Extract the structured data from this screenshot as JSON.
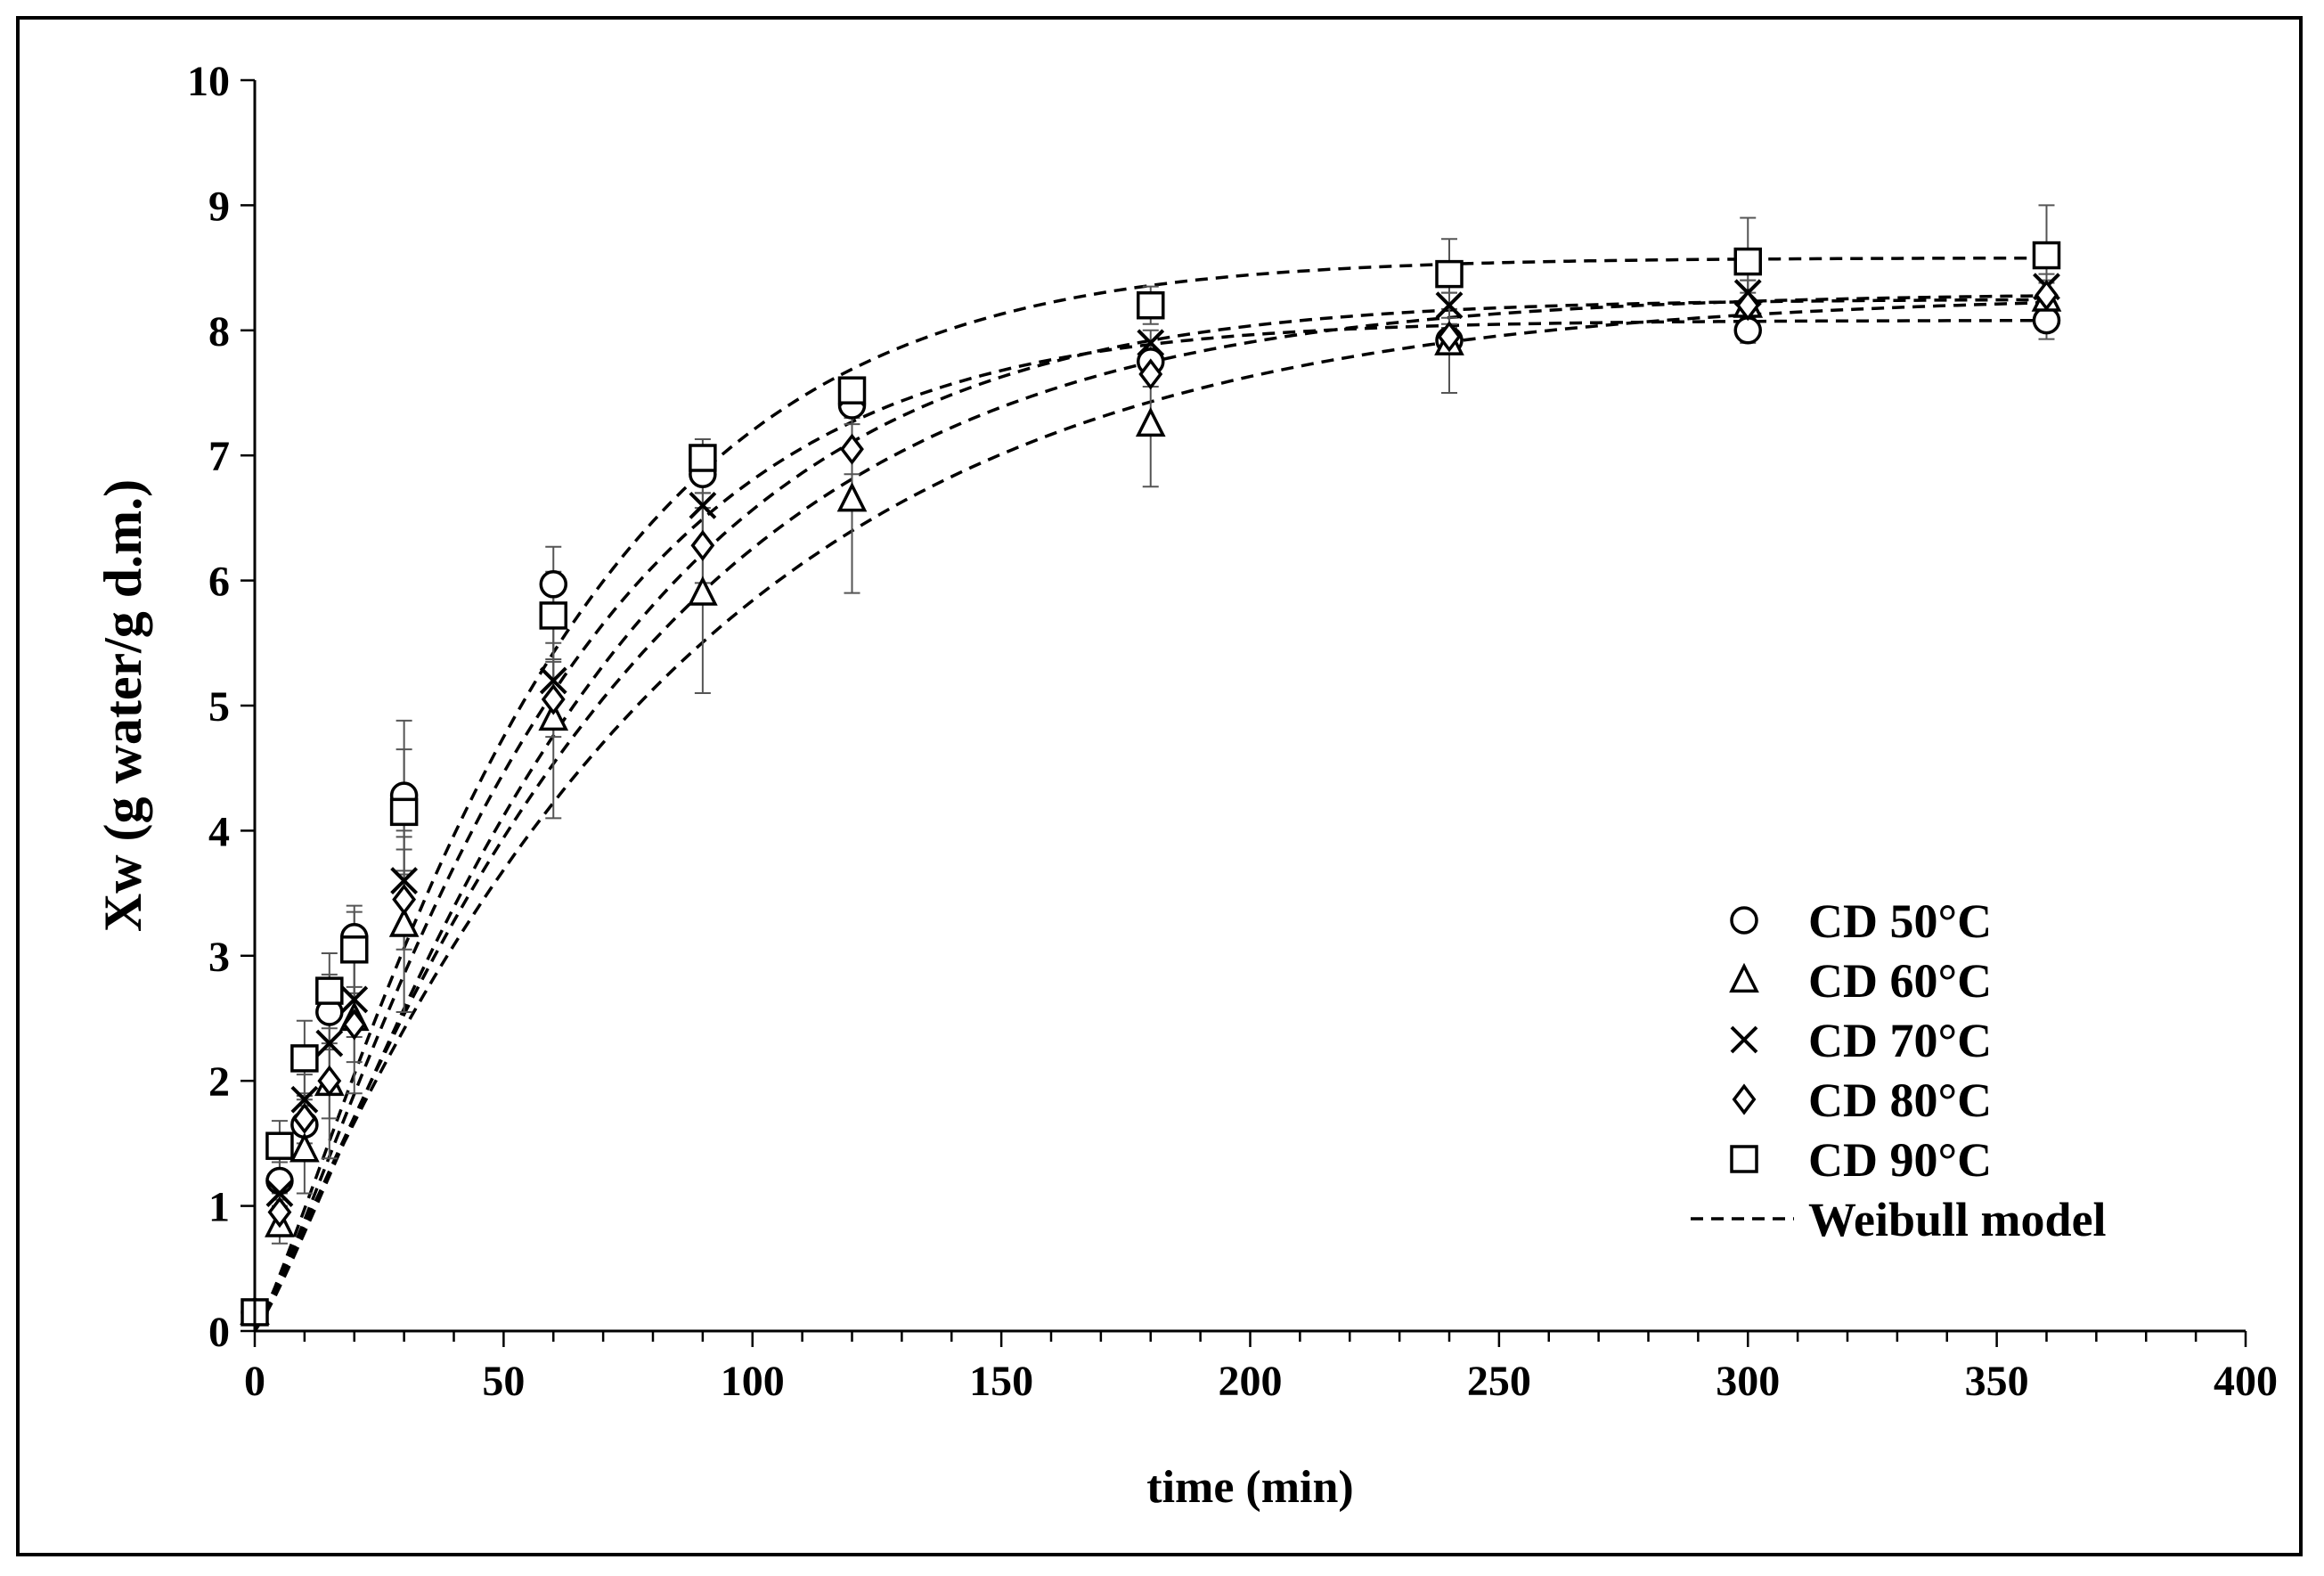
{
  "chart_data": {
    "type": "scatter",
    "xlabel": "time (min)",
    "ylabel": "Xw (g water/g d.m.)",
    "xlim": [
      0,
      400
    ],
    "ylim": [
      0,
      10
    ],
    "xticks": [
      0,
      50,
      100,
      150,
      200,
      250,
      300,
      350,
      400
    ],
    "yticks": [
      0,
      1,
      2,
      3,
      4,
      5,
      6,
      7,
      8,
      9,
      10
    ],
    "grid": false,
    "legend_position": "bottom-right",
    "x": [
      0,
      5,
      10,
      15,
      20,
      30,
      60,
      90,
      120,
      180,
      240,
      300,
      360
    ],
    "series": [
      {
        "name": "CD 50°C",
        "marker": "circle",
        "values": [
          0.15,
          1.2,
          1.65,
          2.55,
          3.15,
          4.28,
          5.97,
          6.85,
          7.4,
          7.75,
          7.92,
          8.0,
          8.08
        ],
        "errors": [
          0.05,
          0.15,
          0.2,
          0.3,
          0.2,
          0.6,
          0.3,
          0.15,
          0.1,
          0.1,
          0.1,
          0.1,
          0.15
        ],
        "model": {
          "a": 8.08,
          "b": 60.0,
          "n": 1.2
        }
      },
      {
        "name": "CD 60°C",
        "marker": "triangle",
        "values": [
          0.15,
          0.85,
          1.45,
          1.98,
          2.5,
          3.25,
          4.9,
          5.9,
          6.65,
          7.25,
          7.9,
          8.2,
          8.25
        ],
        "errors": [
          0.05,
          0.15,
          0.35,
          0.6,
          0.6,
          0.7,
          0.8,
          0.8,
          0.75,
          0.5,
          0.4,
          0.2,
          0.15
        ],
        "model": {
          "a": 8.3,
          "b": 83.0,
          "n": 1.05
        }
      },
      {
        "name": "CD 70°C",
        "marker": "x",
        "values": [
          0.15,
          1.1,
          1.85,
          2.3,
          2.65,
          3.6,
          5.2,
          6.6,
          7.5,
          7.9,
          8.2,
          8.3,
          8.35
        ],
        "errors": [
          0.05,
          0.15,
          0.2,
          0.3,
          0.3,
          0.4,
          0.3,
          0.3,
          0.1,
          0.1,
          0.1,
          0.1,
          0.1
        ],
        "model": {
          "a": 8.25,
          "b": 68.0,
          "n": 1.2
        }
      },
      {
        "name": "CD 80°C",
        "marker": "diamond",
        "values": [
          0.15,
          0.95,
          1.7,
          2.0,
          2.45,
          3.45,
          5.05,
          6.28,
          7.05,
          7.65,
          7.95,
          8.2,
          8.28
        ],
        "errors": [
          0.05,
          0.15,
          0.2,
          0.3,
          0.3,
          0.4,
          0.3,
          0.3,
          0.2,
          0.1,
          0.1,
          0.1,
          0.1
        ],
        "model": {
          "a": 8.3,
          "b": 74.0,
          "n": 1.12
        }
      },
      {
        "name": "CD 90°C",
        "marker": "square",
        "values": [
          0.15,
          1.48,
          2.18,
          2.72,
          3.05,
          4.15,
          5.72,
          6.98,
          7.52,
          8.2,
          8.45,
          8.55,
          8.6
        ],
        "errors": [
          0.05,
          0.2,
          0.3,
          0.3,
          0.35,
          0.5,
          0.35,
          0.15,
          0.1,
          0.15,
          0.28,
          0.35,
          0.4
        ],
        "model": {
          "a": 8.58,
          "b": 60.0,
          "n": 1.18
        }
      }
    ],
    "model_legend": "Weibull model"
  }
}
